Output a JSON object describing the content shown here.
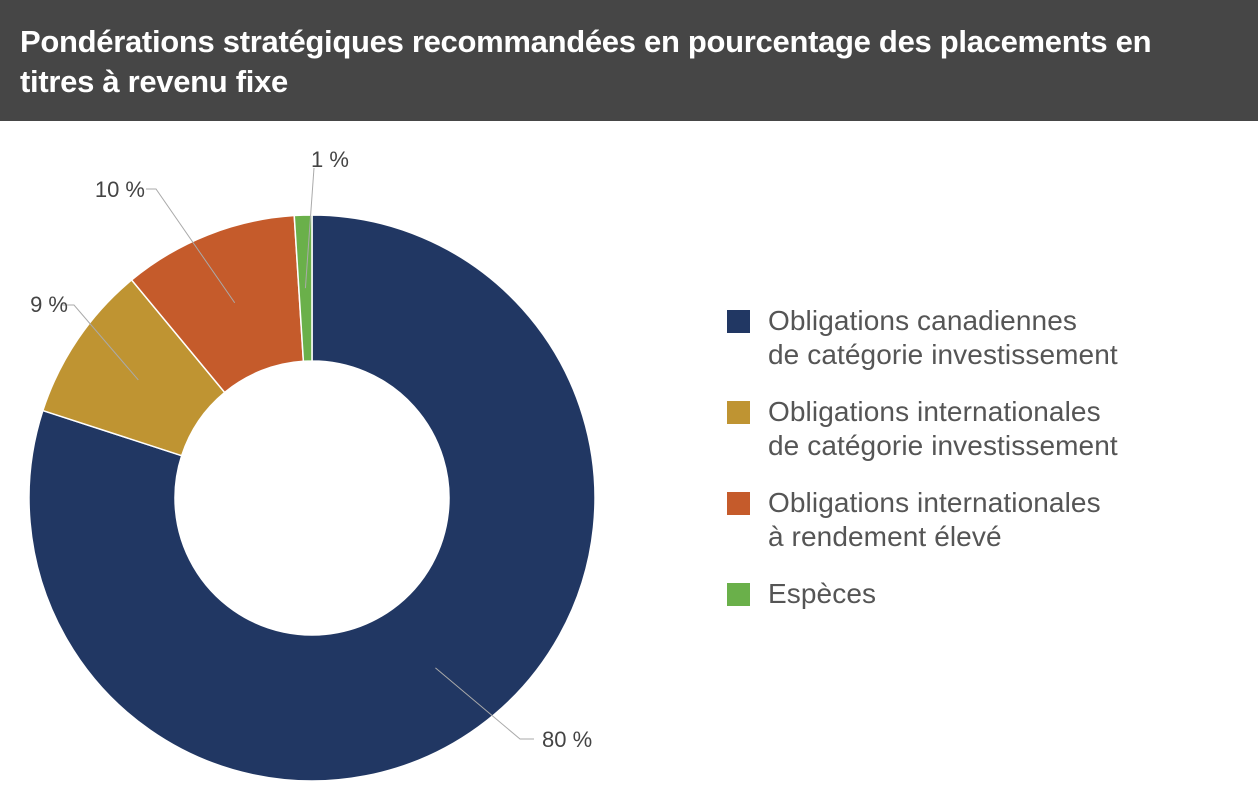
{
  "header": {
    "title": "Pondérations stratégiques recommandées en pourcentage des placements en titres à revenu fixe"
  },
  "chart_data": {
    "type": "pie",
    "donut": true,
    "title": "Pondérations stratégiques recommandées en pourcentage des placements en titres à revenu fixe",
    "legend_position": "right",
    "slices": [
      {
        "label_lines": [
          "Obligations canadiennes",
          "de catégorie investissement"
        ],
        "value": 80,
        "value_label": "80 %",
        "color": "#213763"
      },
      {
        "label_lines": [
          "Obligations internationales",
          "de catégorie investissement"
        ],
        "value": 9,
        "value_label": "9 %",
        "color": "#bf9432"
      },
      {
        "label_lines": [
          "Obligations internationales",
          "à rendement élevé"
        ],
        "value": 10,
        "value_label": "10 %",
        "color": "#c55b2b"
      },
      {
        "label_lines": [
          "Espèces"
        ],
        "value": 1,
        "value_label": "1 %",
        "color": "#6ab04a"
      }
    ]
  }
}
